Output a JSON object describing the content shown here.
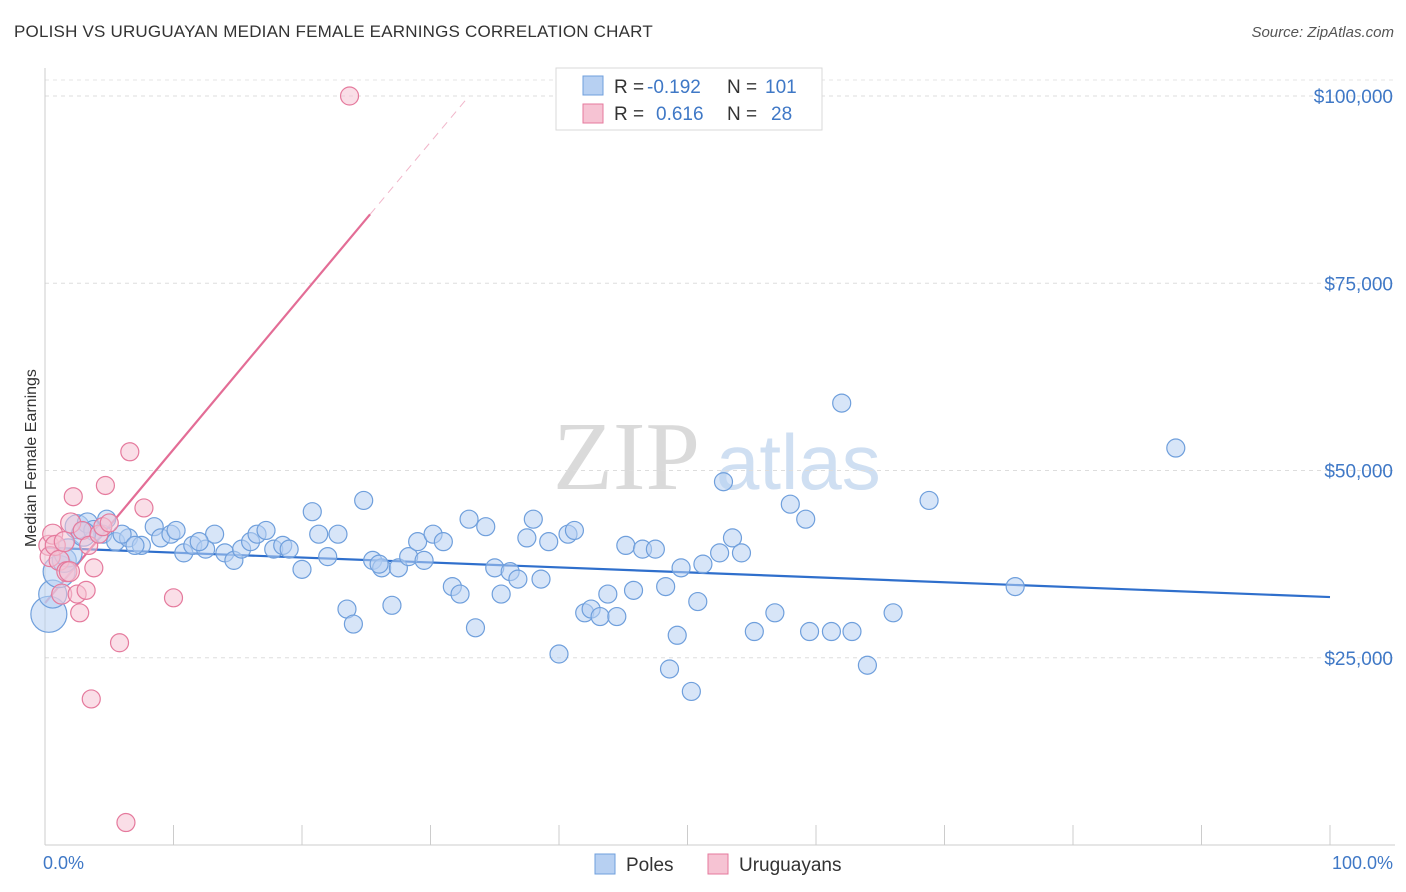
{
  "title": "POLISH VS URUGUAYAN MEDIAN FEMALE EARNINGS CORRELATION CHART",
  "source": "Source: ZipAtlas.com",
  "watermark": {
    "zip": "ZIP",
    "atlas": "atlas"
  },
  "colors": {
    "poles": "#6f9fdc",
    "poles_fill": "#b7d0f2",
    "poles_line": "#2f6fcc",
    "uruguayans": "#e57a9d",
    "uruguayans_fill": "#f6c3d3",
    "uruguayans_line": "#e36d96",
    "tick": "#3f78c6"
  },
  "legend": {
    "rows": [
      {
        "series": "Poles",
        "r_label": "R =",
        "r_value": "-0.192",
        "n_label": "N =",
        "n_value": "101"
      },
      {
        "series": "Uruguayans",
        "r_label": "R =",
        "r_value": "0.616",
        "n_label": "N =",
        "n_value": "28"
      }
    ]
  },
  "chart_data": {
    "type": "scatter",
    "title": "POLISH VS URUGUAYAN MEDIAN FEMALE EARNINGS CORRELATION CHART",
    "xlabel": "",
    "ylabel": "Median Female Earnings",
    "xlim": [
      0,
      100
    ],
    "ylim": [
      0,
      103000
    ],
    "x_tick_labels": [
      "0.0%",
      "100.0%"
    ],
    "y_ticks": [
      25000,
      50000,
      75000,
      100000
    ],
    "y_tick_labels": [
      "$25,000",
      "$50,000",
      "$75,000",
      "$100,000"
    ],
    "grid": true,
    "series": [
      {
        "name": "Poles",
        "trend": {
          "x0": 0,
          "y0": 39700,
          "x1": 100,
          "y1": 33100,
          "dashed_from": null
        },
        "points": [
          [
            0.3,
            30800,
            18
          ],
          [
            0.6,
            33500,
            14
          ],
          [
            1.1,
            36500,
            16
          ],
          [
            1.5,
            38000,
            12
          ],
          [
            1.8,
            39000,
            14
          ],
          [
            2.5,
            42500,
            12
          ],
          [
            3.3,
            43000,
            10
          ],
          [
            3.8,
            42000,
            10
          ],
          [
            4.5,
            41500,
            9
          ],
          [
            4.8,
            43500,
            9
          ],
          [
            5.5,
            40500,
            9
          ],
          [
            6.5,
            41000,
            9
          ],
          [
            7.5,
            40000,
            9
          ],
          [
            8.5,
            42500,
            9
          ],
          [
            9.0,
            41000,
            9
          ],
          [
            9.8,
            41500,
            9
          ],
          [
            10.2,
            42000,
            9
          ],
          [
            10.8,
            39000,
            9
          ],
          [
            11.5,
            40000,
            9
          ],
          [
            12.5,
            39500,
            9
          ],
          [
            13.2,
            41500,
            9
          ],
          [
            14.0,
            39000,
            9
          ],
          [
            14.7,
            38000,
            9
          ],
          [
            15.3,
            39500,
            9
          ],
          [
            16.0,
            40500,
            9
          ],
          [
            16.5,
            41500,
            9
          ],
          [
            17.2,
            42000,
            9
          ],
          [
            17.8,
            39500,
            9
          ],
          [
            18.5,
            40000,
            9
          ],
          [
            19.0,
            39500,
            9
          ],
          [
            20.0,
            36800,
            9
          ],
          [
            20.8,
            44500,
            9
          ],
          [
            21.3,
            41500,
            9
          ],
          [
            22.0,
            38500,
            9
          ],
          [
            22.8,
            41500,
            9
          ],
          [
            23.5,
            31500,
            9
          ],
          [
            24.0,
            29500,
            9
          ],
          [
            24.8,
            46000,
            9
          ],
          [
            25.5,
            38000,
            9
          ],
          [
            26.2,
            37000,
            9
          ],
          [
            27.0,
            32000,
            9
          ],
          [
            27.5,
            37000,
            9
          ],
          [
            28.3,
            38500,
            9
          ],
          [
            29.0,
            40500,
            9
          ],
          [
            29.5,
            38000,
            9
          ],
          [
            30.2,
            41500,
            9
          ],
          [
            31.0,
            40500,
            9
          ],
          [
            31.7,
            34500,
            9
          ],
          [
            32.3,
            33500,
            9
          ],
          [
            33.0,
            43500,
            9
          ],
          [
            33.5,
            29000,
            9
          ],
          [
            34.3,
            42500,
            9
          ],
          [
            35.0,
            37000,
            9
          ],
          [
            35.5,
            33500,
            9
          ],
          [
            36.2,
            36500,
            9
          ],
          [
            36.8,
            35500,
            9
          ],
          [
            37.5,
            41000,
            9
          ],
          [
            38.0,
            43500,
            9
          ],
          [
            38.6,
            35500,
            9
          ],
          [
            39.2,
            40500,
            9
          ],
          [
            40.0,
            25500,
            9
          ],
          [
            40.7,
            41500,
            9
          ],
          [
            41.2,
            42000,
            9
          ],
          [
            42.0,
            31000,
            9
          ],
          [
            42.5,
            31500,
            9
          ],
          [
            43.2,
            30500,
            9
          ],
          [
            43.8,
            33500,
            9
          ],
          [
            44.5,
            30500,
            9
          ],
          [
            45.2,
            40000,
            9
          ],
          [
            45.8,
            34000,
            9
          ],
          [
            46.5,
            39500,
            9
          ],
          [
            47.5,
            39500,
            9
          ],
          [
            48.3,
            34500,
            9
          ],
          [
            48.6,
            23500,
            9
          ],
          [
            49.2,
            28000,
            9
          ],
          [
            49.5,
            37000,
            9
          ],
          [
            50.3,
            20500,
            9
          ],
          [
            50.8,
            32500,
            9
          ],
          [
            51.2,
            37500,
            9
          ],
          [
            52.5,
            39000,
            9
          ],
          [
            52.8,
            48500,
            9
          ],
          [
            53.5,
            41000,
            9
          ],
          [
            54.2,
            39000,
            9
          ],
          [
            55.2,
            28500,
            9
          ],
          [
            56.8,
            31000,
            9
          ],
          [
            58.0,
            45500,
            9
          ],
          [
            59.2,
            43500,
            9
          ],
          [
            59.5,
            28500,
            9
          ],
          [
            61.2,
            28500,
            9
          ],
          [
            62.0,
            59000,
            9
          ],
          [
            62.8,
            28500,
            9
          ],
          [
            64.0,
            24000,
            9
          ],
          [
            66.0,
            31000,
            9
          ],
          [
            68.8,
            46000,
            9
          ],
          [
            75.5,
            34500,
            9
          ],
          [
            88.0,
            53000,
            9
          ],
          [
            3.0,
            41500,
            12
          ],
          [
            6.0,
            41500,
            9
          ],
          [
            7.0,
            40000,
            9
          ],
          [
            12.0,
            40500,
            9
          ],
          [
            26.0,
            37500,
            9
          ]
        ]
      },
      {
        "name": "Uruguayans",
        "trend": {
          "x0": 0,
          "y0": 32300,
          "x1": 33,
          "y1": 100000,
          "dashed_from": 25.3
        },
        "points": [
          [
            0.3,
            40000,
            10
          ],
          [
            0.4,
            38500,
            10
          ],
          [
            0.6,
            41500,
            10
          ],
          [
            0.8,
            40000,
            10
          ],
          [
            1.1,
            38000,
            10
          ],
          [
            1.3,
            33500,
            10
          ],
          [
            1.5,
            40500,
            10
          ],
          [
            1.7,
            36500,
            10
          ],
          [
            1.9,
            36500,
            10
          ],
          [
            2.0,
            43000,
            10
          ],
          [
            2.2,
            46500,
            9
          ],
          [
            2.5,
            33500,
            9
          ],
          [
            2.7,
            31000,
            9
          ],
          [
            2.9,
            42000,
            9
          ],
          [
            3.2,
            34000,
            9
          ],
          [
            3.4,
            40000,
            9
          ],
          [
            3.6,
            19500,
            9
          ],
          [
            3.8,
            37000,
            9
          ],
          [
            4.2,
            41500,
            9
          ],
          [
            4.5,
            42500,
            9
          ],
          [
            4.7,
            48000,
            9
          ],
          [
            5.0,
            43000,
            9
          ],
          [
            5.8,
            27000,
            9
          ],
          [
            6.3,
            3000,
            9
          ],
          [
            6.6,
            52500,
            9
          ],
          [
            7.7,
            45000,
            9
          ],
          [
            10.0,
            33000,
            9
          ],
          [
            23.7,
            100000,
            9
          ]
        ]
      }
    ]
  },
  "bottom_legend": {
    "items": [
      {
        "label": "Poles"
      },
      {
        "label": "Uruguayans"
      }
    ]
  }
}
